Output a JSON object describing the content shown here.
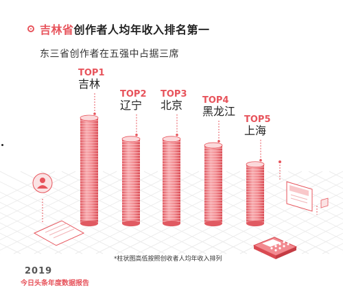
{
  "header": {
    "title_highlight": "吉林省",
    "title_rest": "创作者人均年收入排名第一",
    "subtitle": "东三省创作者在五强中占据三席"
  },
  "chart_data": {
    "type": "bar",
    "categories": [
      "吉林",
      "辽宁",
      "北京",
      "黑龙江",
      "上海"
    ],
    "ranks": [
      "TOP1",
      "TOP2",
      "TOP3",
      "TOP4",
      "TOP5"
    ],
    "values": [
      5,
      4,
      4,
      3.7,
      2.8
    ],
    "note": "*柱状图高低按照创收者人均年收入排列",
    "value_axis_printed": false
  },
  "footer": {
    "year": "2019",
    "report": "今日头条年度数据报告"
  },
  "colors": {
    "accent": "#e7535b",
    "coin_light": "#f7a9ad",
    "coin_dark": "#e05a62",
    "grid": "#ebebeb"
  },
  "icons": [
    "user-icon",
    "document-icon",
    "calculator-icon",
    "newspaper-icon",
    "chart-card-icon"
  ]
}
